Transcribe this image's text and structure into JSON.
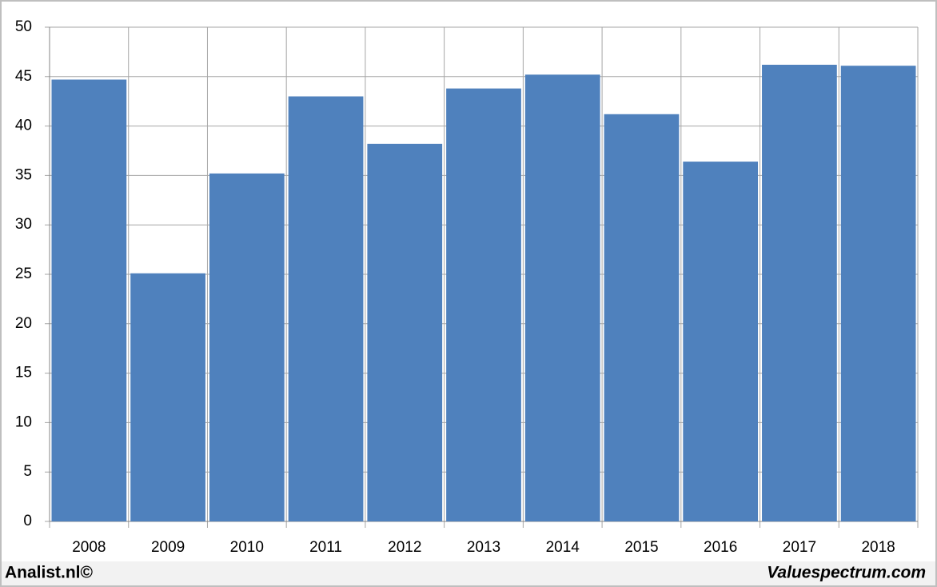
{
  "chart_data": {
    "type": "bar",
    "categories": [
      "2008",
      "2009",
      "2010",
      "2011",
      "2012",
      "2013",
      "2014",
      "2015",
      "2016",
      "2017",
      "2018"
    ],
    "values": [
      44.7,
      25.1,
      35.2,
      43.0,
      38.2,
      43.8,
      45.2,
      41.2,
      36.4,
      46.2,
      46.1
    ],
    "color": "#4f81bd",
    "ylim": [
      0,
      50
    ],
    "yticks": [
      0,
      5,
      10,
      15,
      20,
      25,
      30,
      35,
      40,
      45,
      50
    ],
    "grid": true,
    "annotations": [
      "Analist.nl©",
      "Valuespectrum.com"
    ]
  }
}
